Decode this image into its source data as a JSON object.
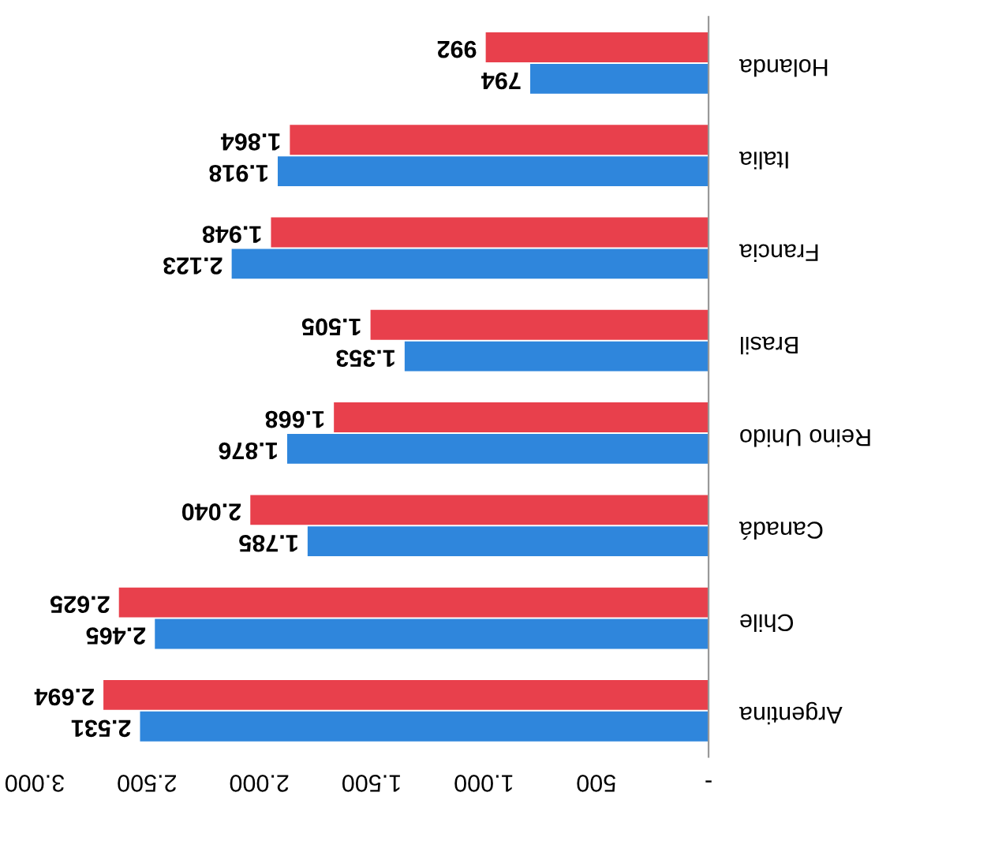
{
  "chart_data": {
    "type": "bar",
    "orientation": "horizontal",
    "categories": [
      "Holanda",
      "Italia",
      "Francia",
      "Brasil",
      "Reino Unido",
      "Canadá",
      "Chile",
      "Argentina"
    ],
    "series": [
      {
        "color": "#2f86dc",
        "values": [
          794,
          1918,
          2123,
          1353,
          1876,
          1785,
          2465,
          2531
        ],
        "value_labels": [
          "794",
          "1.918",
          "2.123",
          "1.353",
          "1.876",
          "1.785",
          "2.465",
          "2.531"
        ]
      },
      {
        "color": "#e8404c",
        "values": [
          992,
          1864,
          1948,
          1505,
          1668,
          2040,
          2625,
          2694
        ],
        "value_labels": [
          "992",
          "1.864",
          "1.948",
          "1.505",
          "1.668",
          "2.040",
          "2.625",
          "2.694"
        ]
      }
    ],
    "xlim": [
      3000,
      0
    ],
    "xticks": [
      {
        "value": 3000,
        "label": "3.000"
      },
      {
        "value": 2500,
        "label": "2.500"
      },
      {
        "value": 2000,
        "label": "2.000"
      },
      {
        "value": 1500,
        "label": "1.500"
      },
      {
        "value": 1000,
        "label": "1.000"
      },
      {
        "value": 500,
        "label": "500"
      },
      {
        "value": 0,
        "label": "-"
      }
    ],
    "grid": false,
    "legend": false
  }
}
